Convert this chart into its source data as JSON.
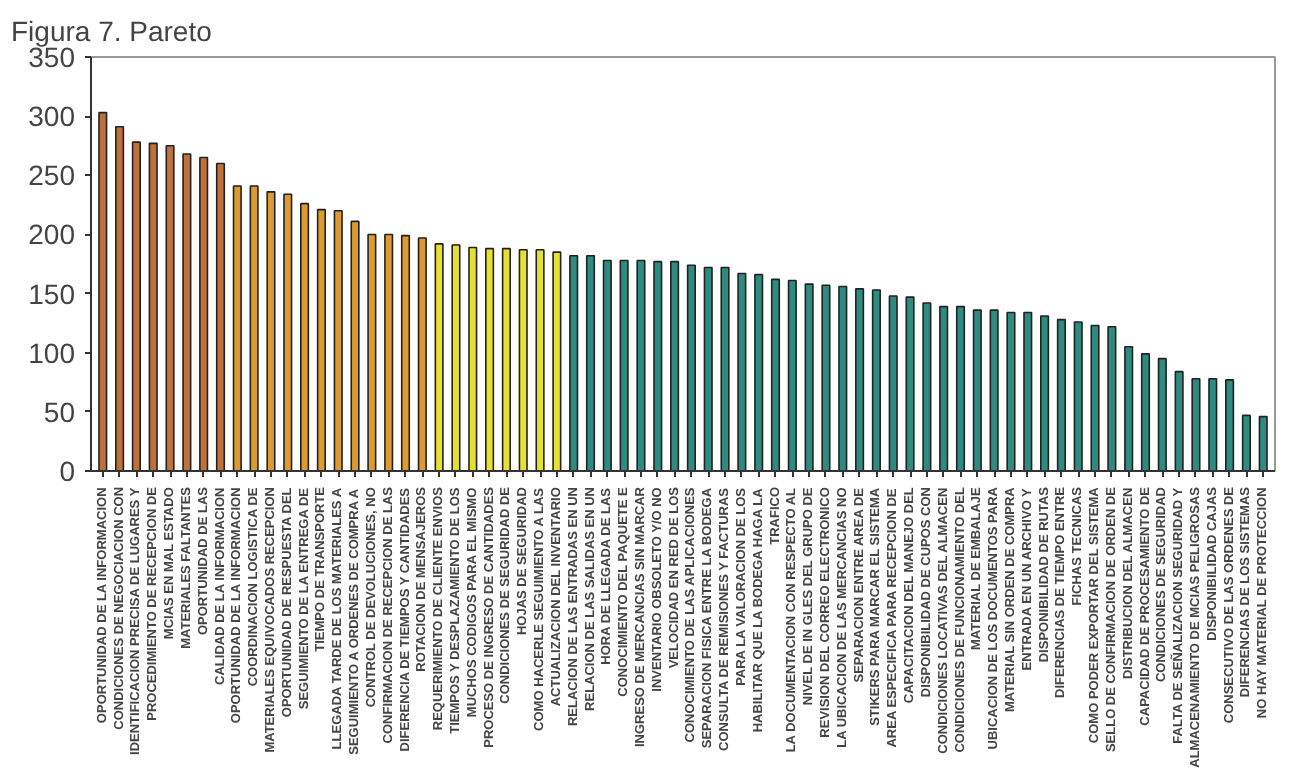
{
  "chart_data": {
    "type": "bar",
    "title": "Figura 7. Pareto",
    "categories": [
      "OPORTUNIDAD DE LA INFORMACION",
      "CONDICIONES DE NEGOCIACION CON",
      "IDENTIFICACION PRECISA DE LUGARES Y",
      "PROCEDIMIENTO DE RECEPCION DE",
      "MCIAS EN MAL ESTADO",
      "MATERIALES FALTANTES",
      "OPORTUNIDAD DE LAS",
      "CALIDAD DE LA INFORMACION",
      "OPORTUNIDAD DE LA INFORMACION",
      "COORDINACION LOGISTICA DE",
      "MATERIALES EQUIVOCADOS RECEPCION",
      "OPORTUNIDAD DE RESPUESTA DEL",
      "SEGUIMIENTO DE LA ENTREGA DE",
      "TIEMPO DE TRANSPORTE",
      "LLEGADA TARDE DE LOS MATERIALES A",
      "SEGUIMIENTO A ORDENES DE COMPRA A",
      "CONTROL DE DEVOLUCIONES, NO",
      "CONFIRMACION DE RECEPCION DE LAS",
      "DIFERENCIA DE TIEMPOS Y CANTIDADES",
      "ROTACION DE MENSAJEROS",
      "REQUERIMIENTO DE CLIENTE ENVIOS",
      "TIEMPOS Y DESPLAZAMIENTO DE LOS",
      "MUCHOS CODIGOS PARA EL MISMO",
      "PROCESO DE INGRESO DE CANTIDADES",
      "CONDICIONES DE SEGURIDAD DE",
      "HOJAS DE SEGURIDAD",
      "COMO HACERLE SEGUIMIENTO A LAS",
      "ACTUALIZACION DEL INVENTARIO",
      "RELACION DE LAS ENTRADAS EN UN",
      "RELACION DE LAS SALIDAS EN UN",
      "HORA DE LLEGADA DE LAS",
      "CONOCIMIENTO DEL PAQUETE E",
      "INGRESO DE MERCANCIAS SIN MARCAR",
      "INVENTARIO OBSOLETO Y/O NO",
      "VELOCIDAD EN RED DE LOS",
      "CONOCIMIENTO DE LAS APLICACIONES",
      "SEPARACION FISICA ENTRE LA BODEGA",
      "CONSULTA DE REMISIONES Y FACTURAS",
      "PARA LA VALORACION DE LOS",
      "HABILITAR QUE LA BODEGA HAGA LA",
      "TRAFICO",
      "LA DOCUMENTACION CON RESPECTO AL",
      "NIVEL DE IN GLES DEL GRUPO DE",
      "REVISION DEL CORREO ELECTRONICO",
      "LA UBICACION DE LAS MERCANCIAS NO",
      "SEPARACION ENTRE AREA DE",
      "STIKERS PARA MARCAR EL SISTEMA",
      "AREA ESPECIFICA PARA RECEPCION DE",
      "CAPACITACION DEL MANEJO DEL",
      "DISPONIBILIDAD DE CUPOS CON",
      "CONDICIONES LOCATIVAS DEL ALMACEN",
      "CONDICIONES DE FUNCIONAMIENTO DEL",
      "MATERIAL DE EMBALAJE",
      "UBICACION DE LOS DOCUMENTOS PARA",
      "MATERIAL SIN ORDEN DE COMPRA",
      "ENTRADA EN UN ARCHIVO Y",
      "DISPONIBILIDAD DE RUTAS",
      "DIFERENCIAS DE TIEMPO ENTRE",
      "FICHAS TECNICAS",
      "COMO PODER EXPORTAR DEL SISTEMA",
      "SELLO DE CONFIRMACION DE ORDEN DE",
      "DISTRIBUCION DEL ALMACEN",
      "CAPACIDAD DE PROCESAMIENTO DE",
      "CONDICIONES DE SEGURIDAD",
      "FALTA DE SEÑALIZACION SEGURIDAD Y",
      "ALMACENAMIENTO DE MCIAS PELIGROSAS",
      "DISPONIBILIDAD CAJAS",
      "CONSECUTIVO DE LAS ORDENES DE",
      "DIFERENCIAS DE LOS SISTEMAS",
      "NO HAY MATERIAL DE PROTECCION"
    ],
    "values": [
      303,
      291,
      278,
      277,
      275,
      268,
      265,
      260,
      241,
      241,
      236,
      234,
      226,
      221,
      220,
      211,
      200,
      200,
      199,
      197,
      192,
      191,
      189,
      188,
      188,
      187,
      187,
      185,
      182,
      182,
      178,
      178,
      178,
      177,
      177,
      174,
      172,
      172,
      167,
      166,
      162,
      161,
      158,
      157,
      156,
      154,
      153,
      148,
      147,
      142,
      139,
      139,
      136,
      136,
      134,
      134,
      131,
      128,
      126,
      123,
      122,
      105,
      99,
      95,
      84,
      78,
      78,
      77,
      47,
      46
    ],
    "colors": [
      "#c0703a",
      "#c0703a",
      "#c0703a",
      "#c0703a",
      "#c0703a",
      "#c0703a",
      "#c0703a",
      "#c0703a",
      "#dc9a30",
      "#dc9a30",
      "#dc9a30",
      "#dc9a30",
      "#dc9a30",
      "#dc9a30",
      "#dc9a30",
      "#dc9a30",
      "#dc9a30",
      "#dc9a30",
      "#dc9a30",
      "#dc9a30",
      "#e6e030",
      "#e6e030",
      "#e6e030",
      "#e6e030",
      "#e6e030",
      "#e6e030",
      "#e6e030",
      "#e6e030",
      "#2e8b80",
      "#2e8b80",
      "#2e8b80",
      "#2e8b80",
      "#2e8b80",
      "#2e8b80",
      "#2e8b80",
      "#2e8b80",
      "#2e8b80",
      "#2e8b80",
      "#2e8b80",
      "#2e8b80",
      "#2e8b80",
      "#2e8b80",
      "#2e8b80",
      "#2e8b80",
      "#2e8b80",
      "#2e8b80",
      "#2e8b80",
      "#2e8b80",
      "#2e8b80",
      "#2e8b80",
      "#2e8b80",
      "#2e8b80",
      "#2e8b80",
      "#2e8b80",
      "#2e8b80",
      "#2e8b80",
      "#2e8b80",
      "#2e8b80",
      "#2e8b80",
      "#2e8b80",
      "#2e8b80",
      "#2e8b80",
      "#2e8b80",
      "#2e8b80",
      "#2e8b80",
      "#2e8b80",
      "#2e8b80",
      "#2e8b80",
      "#2e8b80",
      "#2e8b80"
    ],
    "ylim": [
      0,
      350
    ],
    "yticks": [
      0,
      50,
      100,
      150,
      200,
      250,
      300,
      350
    ],
    "grid": false
  }
}
